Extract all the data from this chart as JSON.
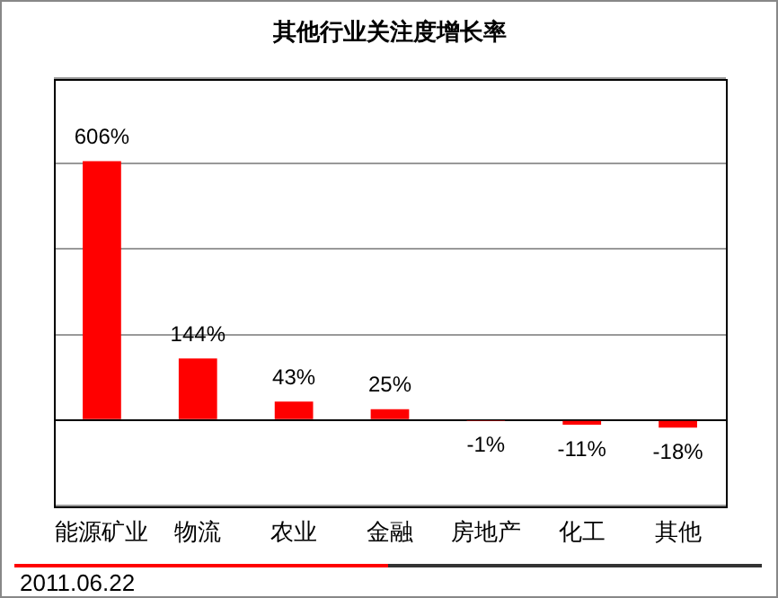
{
  "chart_data": {
    "type": "bar",
    "title": "其他行业关注度增长率",
    "categories": [
      "能源矿业",
      "物流",
      "农业",
      "金融",
      "房地产",
      "化工",
      "其他"
    ],
    "values": [
      606,
      144,
      43,
      25,
      -1,
      -11,
      -18
    ],
    "value_labels": [
      "606%",
      "144%",
      "43%",
      "25%",
      "-1%",
      "-11%",
      "-18%"
    ],
    "color": "#ff0000",
    "ylim": [
      -200,
      800
    ],
    "yticks": [
      {
        "value": -200,
        "label": null
      },
      {
        "value": 0,
        "label": null
      },
      {
        "value": 200,
        "label": null
      },
      {
        "value": 400,
        "label": null
      },
      {
        "value": 600,
        "label": null
      },
      {
        "value": 800,
        "label": null
      }
    ],
    "tick_labels": "x",
    "grid": "y",
    "legend": false,
    "annotations": [
      "2011.06.22"
    ]
  }
}
